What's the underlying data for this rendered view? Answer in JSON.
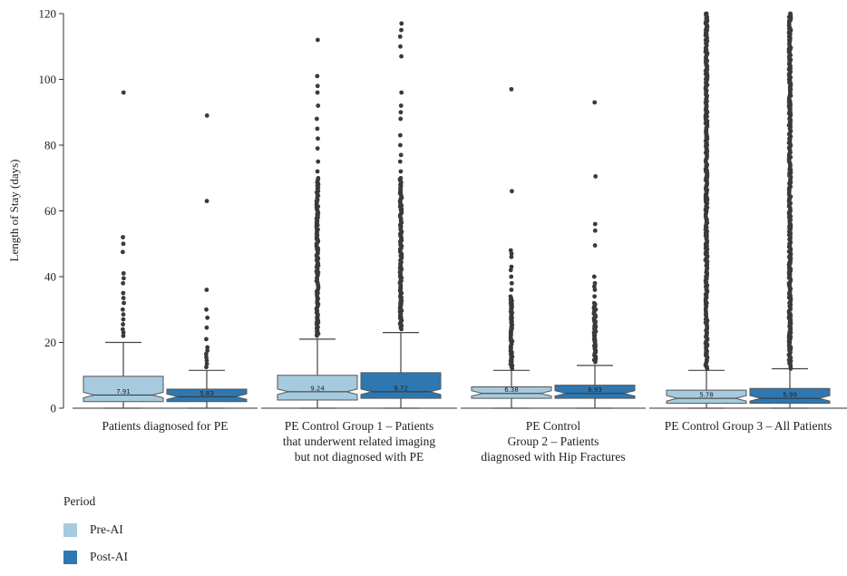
{
  "chart_data": {
    "type": "box",
    "title": "",
    "xlabel": "",
    "ylabel": "Length of Stay (days)",
    "ylim": [
      0,
      120
    ],
    "yticks": [
      0,
      20,
      40,
      60,
      80,
      100,
      120
    ],
    "grid": false,
    "notched": true,
    "legend": {
      "title": "Period",
      "placement": "bottom-left",
      "entries": [
        {
          "name": "Pre-AI",
          "color": "#a6cade"
        },
        {
          "name": "Post-AI",
          "color": "#2f77b0"
        }
      ]
    },
    "groups": [
      {
        "label_lines": [
          "Patients diagnosed for PE"
        ],
        "boxes": [
          {
            "period": "Pre-AI",
            "q1": 2,
            "median": 4,
            "q3": 9.7,
            "whisker_low": 0,
            "whisker_high": 20,
            "mean_label": "7.91",
            "outliers": [
              22,
              23,
              24,
              25.5,
              27,
              28.5,
              30,
              32,
              33.5,
              35,
              38,
              39.5,
              41,
              47.5,
              50,
              52,
              96
            ]
          },
          {
            "period": "Post-AI",
            "q1": 2,
            "median": 3.5,
            "q3": 5.8,
            "whisker_low": 0,
            "whisker_high": 11.5,
            "mean_label": "5.83",
            "outliers": [
              12.5,
              13.5,
              14.5,
              15.5,
              16.5,
              17.5,
              18.5,
              21,
              24.5,
              27.5,
              30,
              36,
              63,
              89
            ]
          }
        ]
      },
      {
        "label_lines": [
          "PE Control Group 1 – Patients",
          "that underwent related imaging",
          "but not diagnosed with PE"
        ],
        "boxes": [
          {
            "period": "Pre-AI",
            "q1": 2.5,
            "median": 5,
            "q3": 10,
            "whisker_low": 0,
            "whisker_high": 21,
            "mean_label": "9.24",
            "outliers": [
              72,
              75,
              79,
              82,
              85,
              88,
              92,
              96,
              98,
              101,
              112
            ]
          },
          {
            "period": "Post-AI",
            "q1": 3,
            "median": 5,
            "q3": 10.8,
            "whisker_low": 0,
            "whisker_high": 23,
            "mean_label": "9.72",
            "outliers": [
              72,
              75,
              77,
              80,
              83,
              88,
              90,
              92,
              96,
              107,
              110,
              113,
              115,
              117
            ]
          }
        ]
      },
      {
        "label_lines": [
          "PE Control",
          "Group 2 – Patients",
          "diagnosed with Hip Fractures"
        ],
        "boxes": [
          {
            "period": "Pre-AI",
            "q1": 3,
            "median": 4.5,
            "q3": 6.5,
            "whisker_low": 0,
            "whisker_high": 11.5,
            "mean_label": "6.38",
            "outliers": [
              36,
              38,
              40,
              42,
              43,
              46,
              47,
              48,
              66,
              97
            ]
          },
          {
            "period": "Post-AI",
            "q1": 3,
            "median": 4.5,
            "q3": 7,
            "whisker_low": 0,
            "whisker_high": 13,
            "mean_label": "6.93",
            "outliers": [
              34,
              36,
              37,
              38,
              40,
              49.5,
              54,
              56,
              70.5,
              93
            ]
          }
        ]
      },
      {
        "label_lines": [
          "PE Control Group 3 – All Patients"
        ],
        "boxes": [
          {
            "period": "Pre-AI",
            "q1": 1.5,
            "median": 3,
            "q3": 5.5,
            "whisker_low": 0,
            "whisker_high": 11.5,
            "mean_label": "5.78",
            "outliers": [
              92,
              95,
              98,
              100,
              103,
              106,
              109,
              112,
              115,
              118,
              119,
              120
            ]
          },
          {
            "period": "Post-AI",
            "q1": 1.5,
            "median": 3,
            "q3": 6,
            "whisker_low": 0,
            "whisker_high": 12,
            "mean_label": "5.99",
            "outliers": [
              92,
              95,
              98,
              100,
              103,
              106,
              109,
              112,
              115,
              118,
              119,
              120
            ]
          }
        ]
      }
    ],
    "dense_outlier_ranges": [
      {
        "group": 0,
        "period": "Pre-AI",
        "from": 0,
        "to": 0
      },
      {
        "group": 0,
        "period": "Post-AI",
        "from": 0,
        "to": 0
      },
      {
        "group": 1,
        "period": "Pre-AI",
        "from": 22,
        "to": 70
      },
      {
        "group": 1,
        "period": "Post-AI",
        "from": 24,
        "to": 70
      },
      {
        "group": 2,
        "period": "Pre-AI",
        "from": 12,
        "to": 34
      },
      {
        "group": 2,
        "period": "Post-AI",
        "from": 14,
        "to": 32
      },
      {
        "group": 3,
        "period": "Pre-AI",
        "from": 12,
        "to": 120
      },
      {
        "group": 3,
        "period": "Post-AI",
        "from": 12,
        "to": 120
      }
    ]
  }
}
